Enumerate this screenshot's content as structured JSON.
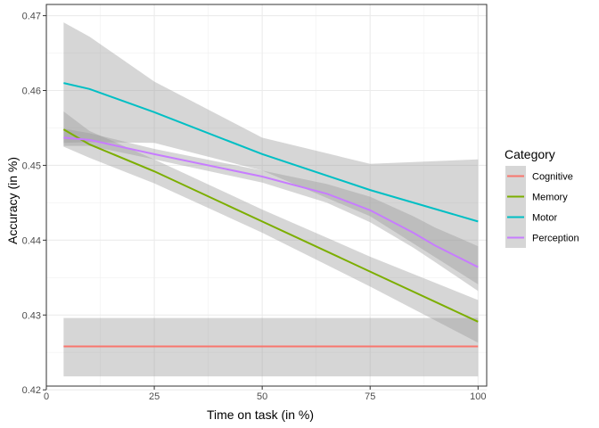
{
  "chart_data": {
    "type": "line",
    "title": "",
    "xlabel": "Time on task (in %)",
    "ylabel": "Accuracy (in %)",
    "xlim": [
      0,
      102
    ],
    "ylim": [
      0.4205,
      0.4715
    ],
    "x_ticks": [
      0,
      25,
      50,
      75,
      100
    ],
    "y_ticks": [
      0.42,
      0.43,
      0.44,
      0.45,
      0.46,
      0.47
    ],
    "x_tick_labels": [
      "0",
      "25",
      "50",
      "75",
      "100"
    ],
    "y_tick_labels": [
      "0.42",
      "0.43",
      "0.44",
      "0.45",
      "0.46",
      "0.47"
    ],
    "grid": true,
    "legend": {
      "title": "Category",
      "position": "right"
    },
    "series": [
      {
        "name": "Cognitive",
        "color": "#F8766D",
        "x": [
          4,
          25,
          50,
          75,
          100
        ],
        "y": [
          0.4258,
          0.4258,
          0.4258,
          0.4258,
          0.4258
        ],
        "ci_lower": [
          0.4218,
          0.4218,
          0.4218,
          0.4218,
          0.4218
        ],
        "ci_upper": [
          0.4296,
          0.4296,
          0.4296,
          0.4296,
          0.4296
        ]
      },
      {
        "name": "Memory",
        "color": "#7CAE00",
        "x": [
          4,
          10,
          25,
          50,
          75,
          100
        ],
        "y": [
          0.4548,
          0.4528,
          0.4492,
          0.4425,
          0.4358,
          0.4291
        ],
        "ci_lower": [
          0.4525,
          0.451,
          0.4476,
          0.441,
          0.4338,
          0.4263
        ],
        "ci_upper": [
          0.4572,
          0.4546,
          0.4508,
          0.4441,
          0.4378,
          0.432
        ]
      },
      {
        "name": "Motor",
        "color": "#00BFC4",
        "x": [
          4,
          10,
          25,
          50,
          75,
          100
        ],
        "y": [
          0.461,
          0.4602,
          0.4571,
          0.4515,
          0.4467,
          0.4425
        ],
        "ci_lower": [
          0.453,
          0.4531,
          0.453,
          0.4493,
          0.4432,
          0.4341
        ],
        "ci_upper": [
          0.4691,
          0.4672,
          0.4612,
          0.4537,
          0.4502,
          0.4508
        ]
      },
      {
        "name": "Perception",
        "color": "#C77CFF",
        "x": [
          4,
          10,
          25,
          50,
          65,
          75,
          85,
          90,
          100
        ],
        "y": [
          0.4537,
          0.4534,
          0.4515,
          0.4485,
          0.4462,
          0.444,
          0.441,
          0.4393,
          0.4364
        ],
        "ci_lower": [
          0.4526,
          0.4526,
          0.4508,
          0.4477,
          0.445,
          0.4424,
          0.439,
          0.4371,
          0.4332
        ],
        "ci_upper": [
          0.4549,
          0.4543,
          0.4522,
          0.4493,
          0.4475,
          0.4458,
          0.4432,
          0.4417,
          0.4392
        ]
      }
    ]
  }
}
